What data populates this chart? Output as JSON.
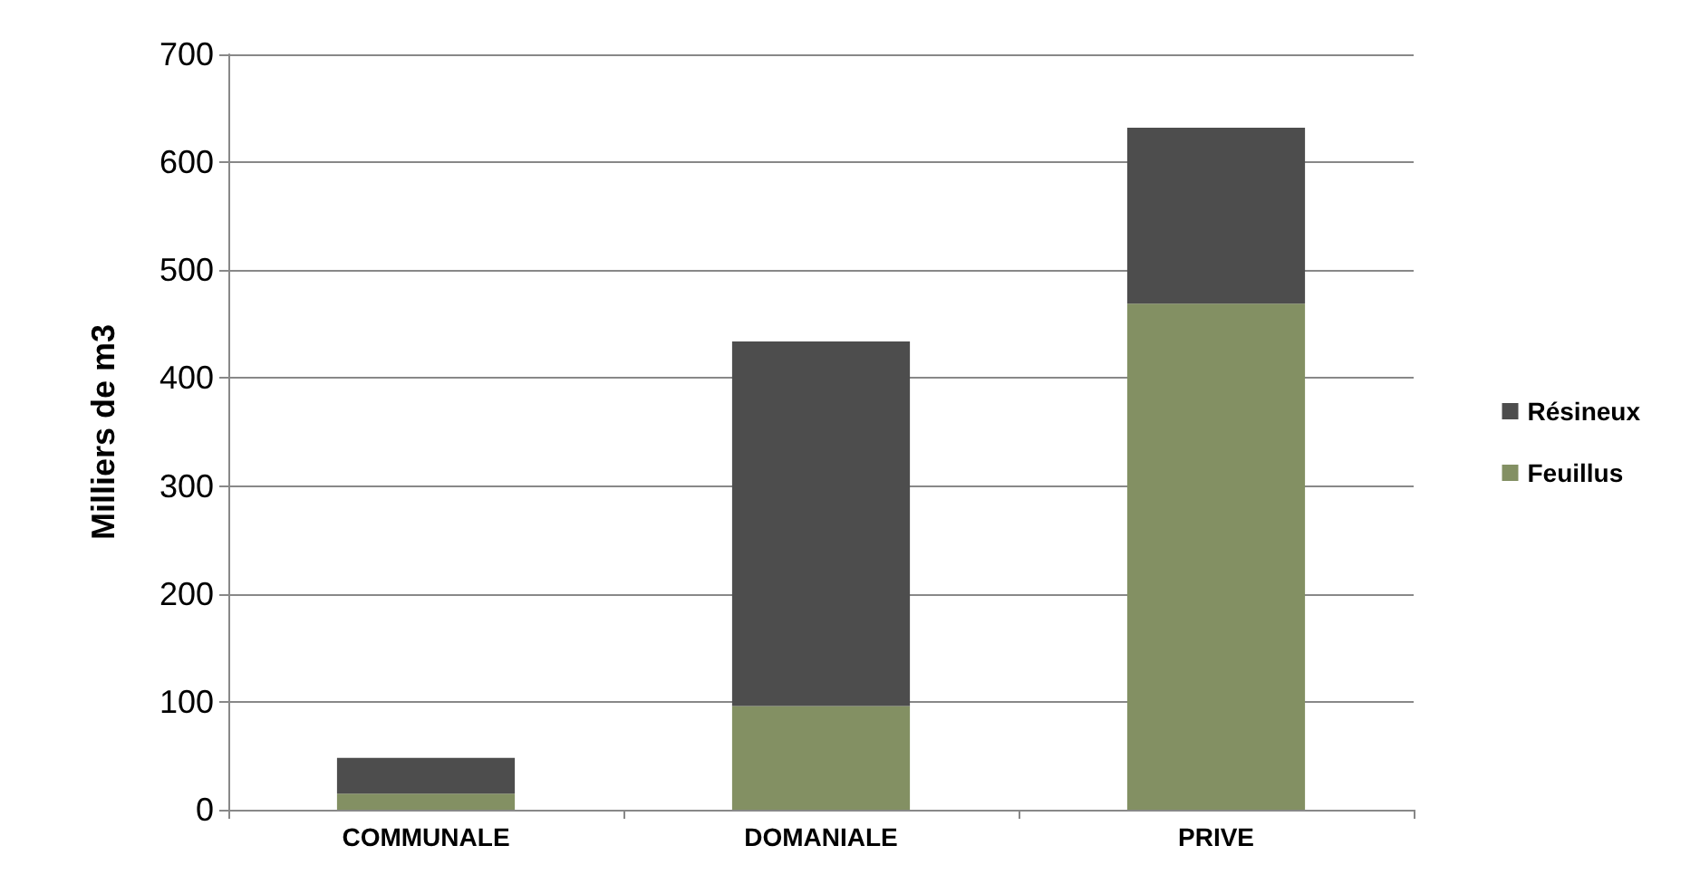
{
  "chart_data": {
    "type": "bar",
    "stacked": true,
    "ylabel": "Milliers de m3",
    "categories": [
      "COMMUNALE",
      "DOMANIALE",
      "PRIVE"
    ],
    "series": [
      {
        "name": "Feuillus",
        "color": "#839063",
        "values": [
          15,
          96,
          469
        ]
      },
      {
        "name": "Résineux",
        "color": "#4d4d4d",
        "values": [
          33,
          338,
          163
        ]
      }
    ],
    "ylim": [
      0,
      700
    ],
    "yticks": [
      0,
      100,
      200,
      300,
      400,
      500,
      600,
      700
    ],
    "grid": "y",
    "legend": "right"
  }
}
